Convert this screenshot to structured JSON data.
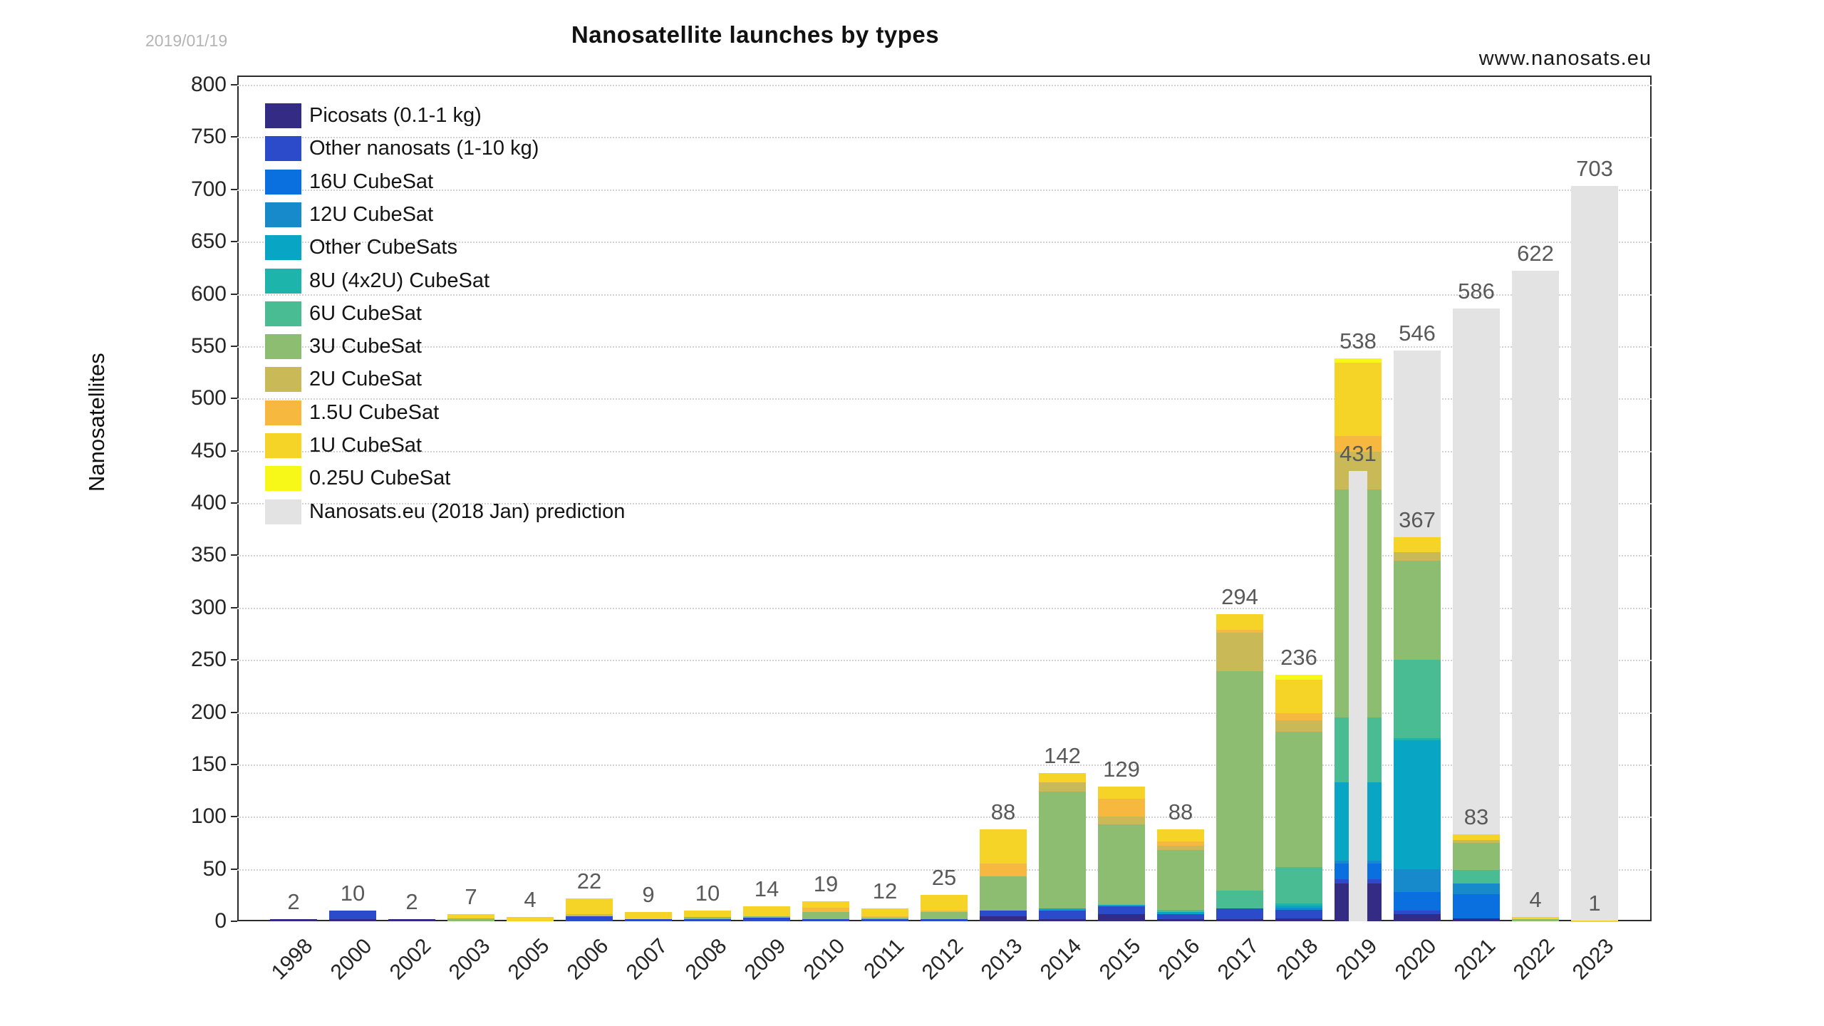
{
  "header": {
    "title": "Nanosatellite launches by types",
    "date_stamp": "2019/01/19",
    "website": "www.nanosats.eu"
  },
  "chart_data": {
    "type": "bar",
    "stacked": true,
    "title": "Nanosatellite launches by types",
    "xlabel": "",
    "ylabel": "Nanosatellites",
    "ylim": [
      0,
      800
    ],
    "ytick_step": 50,
    "grid": "horizontal-dotted",
    "legend_position": "top-left-inside",
    "categories": [
      "1998",
      "2000",
      "2002",
      "2003",
      "2005",
      "2006",
      "2007",
      "2008",
      "2009",
      "2010",
      "2011",
      "2012",
      "2013",
      "2014",
      "2015",
      "2016",
      "2017",
      "2018",
      "2019",
      "2020",
      "2021",
      "2022",
      "2023"
    ],
    "totals": [
      2,
      10,
      2,
      7,
      4,
      22,
      9,
      10,
      14,
      19,
      12,
      25,
      88,
      142,
      129,
      88,
      294,
      236,
      538,
      367,
      83,
      4,
      1
    ],
    "series": [
      {
        "name": "Picosats (0.1-1 kg)",
        "color": "#342c84",
        "values": [
          2,
          2,
          2,
          0,
          0,
          0,
          0,
          0,
          0,
          0,
          0,
          0,
          5,
          2,
          7,
          2,
          2,
          3,
          36,
          7,
          3,
          0,
          0
        ]
      },
      {
        "name": "Other nanosats (1-10 kg)",
        "color": "#2c4bca",
        "values": [
          0,
          8,
          0,
          0,
          0,
          5,
          2,
          2,
          4,
          2,
          2,
          2,
          5,
          8,
          7,
          5,
          10,
          8,
          4,
          3,
          0,
          0,
          0
        ]
      },
      {
        "name": "16U CubeSat",
        "color": "#0a70e0",
        "values": [
          0,
          0,
          0,
          0,
          0,
          0,
          0,
          0,
          0,
          0,
          0,
          0,
          0,
          0,
          0,
          0,
          0,
          0,
          15,
          18,
          23,
          0,
          0
        ]
      },
      {
        "name": "12U CubeSat",
        "color": "#168aca",
        "values": [
          0,
          0,
          0,
          0,
          0,
          0,
          0,
          0,
          0,
          0,
          0,
          0,
          0,
          0,
          0,
          0,
          0,
          2,
          3,
          22,
          10,
          0,
          0
        ]
      },
      {
        "name": "Other CubeSats",
        "color": "#08a5c5",
        "values": [
          0,
          0,
          0,
          0,
          0,
          0,
          0,
          0,
          0,
          0,
          0,
          0,
          0,
          2,
          2,
          2,
          0,
          2,
          75,
          123,
          0,
          0,
          0
        ]
      },
      {
        "name": "8U (4x2U) CubeSat",
        "color": "#1db4ab",
        "values": [
          0,
          0,
          0,
          0,
          0,
          0,
          0,
          0,
          0,
          0,
          0,
          0,
          0,
          0,
          0,
          0,
          0,
          2,
          0,
          2,
          0,
          0,
          0
        ]
      },
      {
        "name": "6U CubeSat",
        "color": "#4abc93",
        "values": [
          0,
          0,
          0,
          0,
          0,
          0,
          0,
          0,
          0,
          0,
          0,
          0,
          0,
          0,
          0,
          2,
          17,
          35,
          62,
          75,
          13,
          0,
          0
        ]
      },
      {
        "name": "3U CubeSat",
        "color": "#8dbd70",
        "values": [
          0,
          0,
          0,
          3,
          0,
          0,
          0,
          2,
          1,
          7,
          2,
          7,
          33,
          112,
          77,
          57,
          210,
          129,
          218,
          95,
          26,
          2,
          0
        ]
      },
      {
        "name": "2U CubeSat",
        "color": "#c9ba57",
        "values": [
          0,
          0,
          0,
          0,
          0,
          2,
          0,
          0,
          0,
          0,
          0,
          0,
          0,
          9,
          7,
          4,
          37,
          11,
          36,
          8,
          3,
          0,
          0
        ]
      },
      {
        "name": "1.5U CubeSat",
        "color": "#f7b83f",
        "values": [
          0,
          0,
          0,
          0,
          0,
          0,
          0,
          0,
          0,
          4,
          1,
          1,
          12,
          0,
          17,
          4,
          3,
          7,
          15,
          0,
          0,
          0,
          0
        ]
      },
      {
        "name": "1U CubeSat",
        "color": "#f5d327",
        "values": [
          0,
          0,
          0,
          4,
          4,
          15,
          7,
          6,
          9,
          6,
          7,
          15,
          33,
          9,
          12,
          12,
          15,
          32,
          70,
          14,
          5,
          2,
          1
        ]
      },
      {
        "name": "0.25U CubeSat",
        "color": "#f8f818",
        "values": [
          0,
          0,
          0,
          0,
          0,
          0,
          0,
          0,
          0,
          0,
          0,
          0,
          0,
          0,
          0,
          0,
          0,
          5,
          4,
          0,
          0,
          0,
          0
        ]
      }
    ],
    "prediction": {
      "name": "Nanosats.eu (2018 Jan) prediction",
      "color": "#e3e3e3",
      "values": [
        null,
        null,
        null,
        null,
        null,
        null,
        null,
        null,
        null,
        null,
        null,
        null,
        null,
        null,
        null,
        null,
        null,
        null,
        431,
        546,
        586,
        622,
        703
      ]
    }
  }
}
